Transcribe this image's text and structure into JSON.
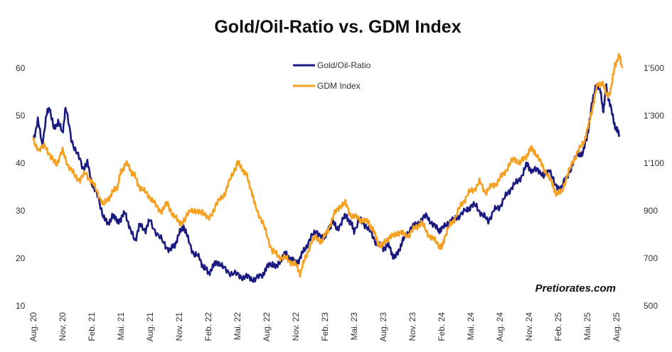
{
  "chart_data": {
    "type": "line",
    "title": "Gold/Oil-Ratio vs. GDM Index",
    "watermark": "Pretiorates.com",
    "x": [
      "Aug. 20",
      "Nov. 20",
      "Feb. 21",
      "Mai. 21",
      "Aug. 21",
      "Nov. 21",
      "Feb. 22",
      "Mai. 22",
      "Aug. 22",
      "Nov. 22",
      "Feb. 23",
      "Mai. 23",
      "Aug. 23",
      "Nov. 23",
      "Feb. 24",
      "Mai. 24",
      "Aug. 24",
      "Nov. 24",
      "Feb. 25",
      "Mai. 25",
      "Aug. 25"
    ],
    "y_left": {
      "ticks": [
        10,
        20,
        30,
        40,
        50,
        60
      ],
      "tick_labels": [
        "10",
        "20",
        "30",
        "40",
        "50",
        "60"
      ],
      "range": [
        10,
        60
      ]
    },
    "y_right": {
      "ticks": [
        500,
        700,
        900,
        1100,
        1300,
        1500
      ],
      "tick_labels": [
        "500",
        "700",
        "900",
        "1'100",
        "1'300",
        "1'500"
      ],
      "range": [
        500,
        1500
      ]
    },
    "legend_position": "top-center",
    "series": [
      {
        "name": "Gold/Oil-Ratio",
        "axis": "left",
        "color": "#1a1a80",
        "values": [
          [
            0,
            45
          ],
          [
            0.15,
            49
          ],
          [
            0.3,
            44
          ],
          [
            0.45,
            50
          ],
          [
            0.55,
            52
          ],
          [
            0.7,
            47
          ],
          [
            0.85,
            49
          ],
          [
            1,
            46
          ],
          [
            1.1,
            52
          ],
          [
            1.3,
            45
          ],
          [
            1.5,
            42
          ],
          [
            1.7,
            39
          ],
          [
            1.85,
            40
          ],
          [
            2,
            36
          ],
          [
            2.2,
            33
          ],
          [
            2.4,
            29
          ],
          [
            2.55,
            27
          ],
          [
            2.7,
            29
          ],
          [
            2.85,
            28
          ],
          [
            3,
            28
          ],
          [
            3.15,
            30
          ],
          [
            3.3,
            26
          ],
          [
            3.5,
            24
          ],
          [
            3.65,
            27
          ],
          [
            3.85,
            26
          ],
          [
            4,
            28
          ],
          [
            4.25,
            25
          ],
          [
            4.5,
            23
          ],
          [
            4.7,
            21.5
          ],
          [
            4.85,
            23
          ],
          [
            5,
            25
          ],
          [
            5.15,
            27
          ],
          [
            5.3,
            24
          ],
          [
            5.5,
            21
          ],
          [
            5.7,
            20
          ],
          [
            5.85,
            18
          ],
          [
            6,
            17
          ],
          [
            6.15,
            18
          ],
          [
            6.3,
            19.5
          ],
          [
            6.5,
            18
          ],
          [
            6.75,
            17
          ],
          [
            7,
            16.5
          ],
          [
            7.2,
            16
          ],
          [
            7.4,
            16
          ],
          [
            7.6,
            15.5
          ],
          [
            7.85,
            16.5
          ],
          [
            8,
            18
          ],
          [
            8.2,
            19
          ],
          [
            8.35,
            18
          ],
          [
            8.5,
            20
          ],
          [
            8.65,
            21
          ],
          [
            8.8,
            20
          ],
          [
            9,
            19
          ],
          [
            9.15,
            20
          ],
          [
            9.3,
            22
          ],
          [
            9.5,
            24
          ],
          [
            9.7,
            26
          ],
          [
            9.9,
            24
          ],
          [
            10,
            25
          ],
          [
            10.15,
            26
          ],
          [
            10.25,
            28
          ],
          [
            10.4,
            26
          ],
          [
            10.6,
            28
          ],
          [
            10.75,
            29
          ],
          [
            10.9,
            27
          ],
          [
            11,
            26
          ],
          [
            11.2,
            28
          ],
          [
            11.4,
            27
          ],
          [
            11.6,
            25
          ],
          [
            11.8,
            23
          ],
          [
            12,
            22
          ],
          [
            12.15,
            23
          ],
          [
            12.3,
            21
          ],
          [
            12.4,
            20
          ],
          [
            12.55,
            22
          ],
          [
            12.7,
            24
          ],
          [
            12.9,
            26
          ],
          [
            13.1,
            27
          ],
          [
            13.3,
            28
          ],
          [
            13.5,
            29
          ],
          [
            13.7,
            27
          ],
          [
            13.9,
            26
          ],
          [
            14,
            26
          ],
          [
            14.2,
            27.5
          ],
          [
            14.4,
            28
          ],
          [
            14.6,
            29
          ],
          [
            14.85,
            30
          ],
          [
            15,
            31
          ],
          [
            15.2,
            31
          ],
          [
            15.4,
            29
          ],
          [
            15.6,
            28
          ],
          [
            15.8,
            30
          ],
          [
            16,
            31
          ],
          [
            16.2,
            33
          ],
          [
            16.4,
            35
          ],
          [
            16.6,
            36
          ],
          [
            16.8,
            38
          ],
          [
            16.95,
            40
          ],
          [
            17.1,
            38
          ],
          [
            17.3,
            39
          ],
          [
            17.5,
            37
          ],
          [
            17.7,
            39
          ],
          [
            17.9,
            35
          ],
          [
            18.1,
            35
          ],
          [
            18.3,
            37
          ],
          [
            18.5,
            40
          ],
          [
            18.7,
            42
          ],
          [
            18.85,
            42
          ],
          [
            19.0,
            46
          ],
          [
            19.15,
            52
          ],
          [
            19.3,
            57
          ],
          [
            19.45,
            55
          ],
          [
            19.55,
            51
          ],
          [
            19.65,
            56
          ],
          [
            19.75,
            53
          ],
          [
            19.9,
            49
          ],
          [
            20.0,
            47
          ],
          [
            20.1,
            46
          ]
        ]
      },
      {
        "name": "GDM Index",
        "axis": "right",
        "color": "#f5a020",
        "values": [
          [
            0,
            1200
          ],
          [
            0.2,
            1150
          ],
          [
            0.4,
            1180
          ],
          [
            0.6,
            1120
          ],
          [
            0.8,
            1100
          ],
          [
            1,
            1150
          ],
          [
            1.2,
            1090
          ],
          [
            1.4,
            1050
          ],
          [
            1.6,
            1030
          ],
          [
            1.8,
            1060
          ],
          [
            2,
            1020
          ],
          [
            2.2,
            980
          ],
          [
            2.4,
            920
          ],
          [
            2.6,
            960
          ],
          [
            2.75,
            980
          ],
          [
            2.9,
            1010
          ],
          [
            3,
            1060
          ],
          [
            3.15,
            1100
          ],
          [
            3.3,
            1080
          ],
          [
            3.45,
            1050
          ],
          [
            3.6,
            1010
          ],
          [
            3.8,
            980
          ],
          [
            4,
            960
          ],
          [
            4.2,
            920
          ],
          [
            4.4,
            900
          ],
          [
            4.6,
            930
          ],
          [
            4.8,
            880
          ],
          [
            5,
            850
          ],
          [
            5.2,
            860
          ],
          [
            5.4,
            910
          ],
          [
            5.6,
            890
          ],
          [
            5.8,
            900
          ],
          [
            6,
            860
          ],
          [
            6.2,
            910
          ],
          [
            6.4,
            950
          ],
          [
            6.6,
            980
          ],
          [
            6.8,
            1050
          ],
          [
            7,
            1100
          ],
          [
            7.15,
            1080
          ],
          [
            7.3,
            1050
          ],
          [
            7.45,
            1000
          ],
          [
            7.6,
            920
          ],
          [
            7.8,
            870
          ],
          [
            8,
            800
          ],
          [
            8.2,
            730
          ],
          [
            8.4,
            710
          ],
          [
            8.6,
            700
          ],
          [
            8.8,
            690
          ],
          [
            9,
            670
          ],
          [
            9.15,
            640
          ],
          [
            9.3,
            690
          ],
          [
            9.5,
            760
          ],
          [
            9.7,
            790
          ],
          [
            9.9,
            770
          ],
          [
            10.1,
            820
          ],
          [
            10.3,
            880
          ],
          [
            10.5,
            920
          ],
          [
            10.7,
            930
          ],
          [
            10.9,
            880
          ],
          [
            11.1,
            870
          ],
          [
            11.3,
            860
          ],
          [
            11.5,
            850
          ],
          [
            11.65,
            820
          ],
          [
            11.8,
            770
          ],
          [
            11.95,
            750
          ],
          [
            12.1,
            780
          ],
          [
            12.3,
            790
          ],
          [
            12.5,
            810
          ],
          [
            12.7,
            800
          ],
          [
            12.9,
            800
          ],
          [
            13.1,
            830
          ],
          [
            13.3,
            850
          ],
          [
            13.5,
            810
          ],
          [
            13.7,
            780
          ],
          [
            13.9,
            760
          ],
          [
            14,
            740
          ],
          [
            14.1,
            790
          ],
          [
            14.3,
            840
          ],
          [
            14.5,
            880
          ],
          [
            14.7,
            930
          ],
          [
            14.9,
            970
          ],
          [
            15.1,
            990
          ],
          [
            15.3,
            1020
          ],
          [
            15.5,
            980
          ],
          [
            15.7,
            1000
          ],
          [
            15.9,
            1020
          ],
          [
            16.1,
            1050
          ],
          [
            16.3,
            1090
          ],
          [
            16.5,
            1120
          ],
          [
            16.7,
            1100
          ],
          [
            16.9,
            1130
          ],
          [
            17.05,
            1160
          ],
          [
            17.2,
            1150
          ],
          [
            17.4,
            1100
          ],
          [
            17.6,
            1060
          ],
          [
            17.8,
            1010
          ],
          [
            17.95,
            970
          ],
          [
            18.1,
            980
          ],
          [
            18.3,
            1040
          ],
          [
            18.5,
            1110
          ],
          [
            18.7,
            1150
          ],
          [
            18.9,
            1200
          ],
          [
            19.05,
            1260
          ],
          [
            19.2,
            1350
          ],
          [
            19.35,
            1430
          ],
          [
            19.5,
            1440
          ],
          [
            19.65,
            1390
          ],
          [
            19.8,
            1400
          ],
          [
            19.95,
            1520
          ],
          [
            20.1,
            1550
          ],
          [
            20.2,
            1500
          ]
        ]
      }
    ]
  }
}
